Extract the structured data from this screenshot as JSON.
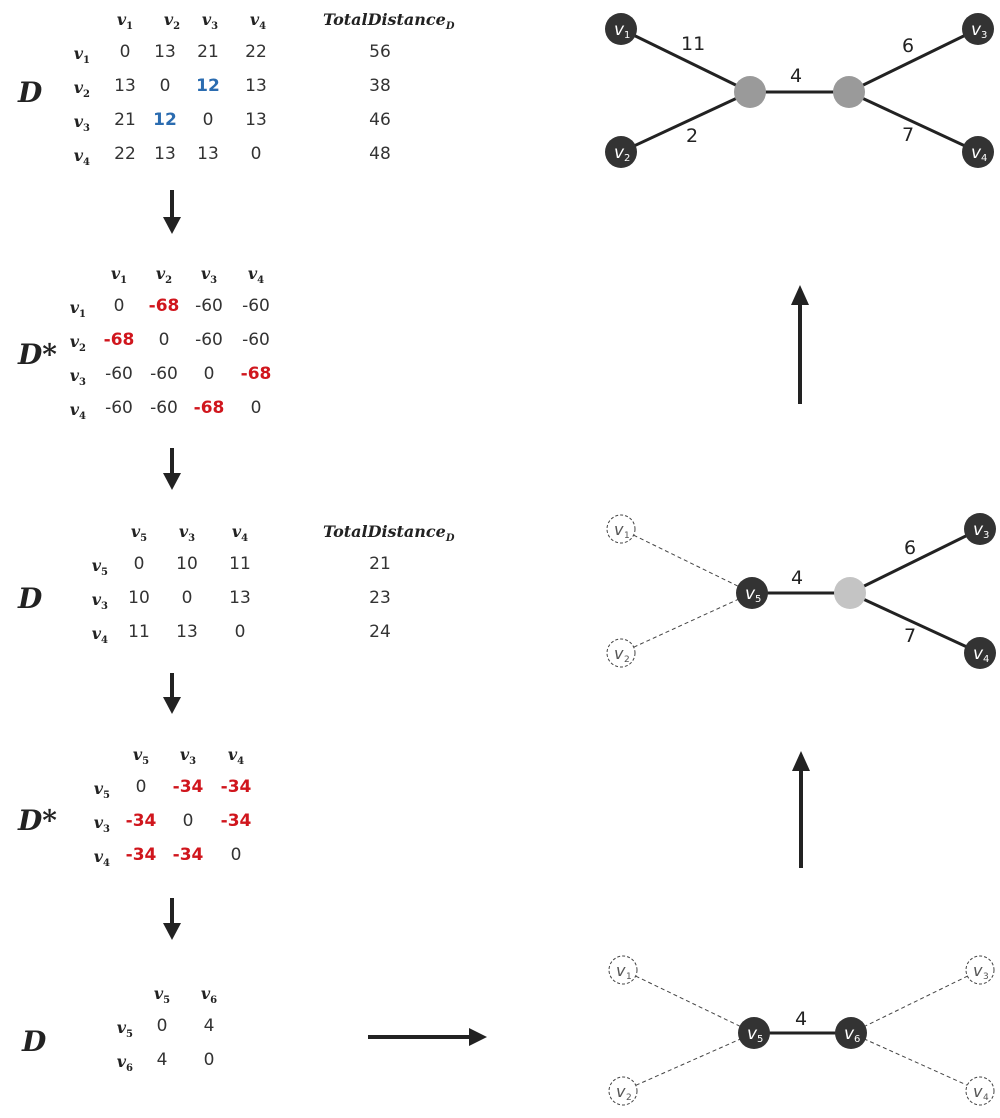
{
  "labels": {
    "D": "D",
    "Dstar": "D*",
    "total_label": "TotalDistance",
    "total_sub": "D"
  },
  "colors": {
    "blue": "#2b6cb0",
    "red": "#d0161d",
    "node_dark": "#333333",
    "node_mid": "#9a9a9a",
    "node_light": "#c4c4c4"
  },
  "m1": {
    "cols": [
      "v1",
      "v2",
      "v3",
      "v4"
    ],
    "rows": [
      {
        "name": "v1",
        "cells": [
          "0",
          "13",
          "21",
          "22"
        ],
        "total": "56"
      },
      {
        "name": "v2",
        "cells": [
          "13",
          "0",
          "12",
          "13"
        ],
        "total": "38"
      },
      {
        "name": "v3",
        "cells": [
          "21",
          "12",
          "0",
          "13"
        ],
        "total": "46"
      },
      {
        "name": "v4",
        "cells": [
          "22",
          "13",
          "13",
          "0"
        ],
        "total": "48"
      }
    ]
  },
  "m2": {
    "cols": [
      "v1",
      "v2",
      "v3",
      "v4"
    ],
    "rows": [
      {
        "name": "v1",
        "cells": [
          "0",
          "-68",
          "-60",
          "-60"
        ]
      },
      {
        "name": "v2",
        "cells": [
          "-68",
          "0",
          "-60",
          "-60"
        ]
      },
      {
        "name": "v3",
        "cells": [
          "-60",
          "-60",
          "0",
          "-68"
        ]
      },
      {
        "name": "v4",
        "cells": [
          "-60",
          "-60",
          "-68",
          "0"
        ]
      }
    ]
  },
  "m3": {
    "cols": [
      "v5",
      "v3",
      "v4"
    ],
    "rows": [
      {
        "name": "v5",
        "cells": [
          "0",
          "10",
          "11"
        ],
        "total": "21"
      },
      {
        "name": "v3",
        "cells": [
          "10",
          "0",
          "13"
        ],
        "total": "23"
      },
      {
        "name": "v4",
        "cells": [
          "11",
          "13",
          "0"
        ],
        "total": "24"
      }
    ]
  },
  "m4": {
    "cols": [
      "v5",
      "v3",
      "v4"
    ],
    "rows": [
      {
        "name": "v5",
        "cells": [
          "0",
          "-34",
          "-34"
        ]
      },
      {
        "name": "v3",
        "cells": [
          "-34",
          "0",
          "-34"
        ]
      },
      {
        "name": "v4",
        "cells": [
          "-34",
          "-34",
          "0"
        ]
      }
    ]
  },
  "m5": {
    "cols": [
      "v5",
      "v6"
    ],
    "rows": [
      {
        "name": "v5",
        "cells": [
          "0",
          "4"
        ]
      },
      {
        "name": "v6",
        "cells": [
          "4",
          "0"
        ]
      }
    ]
  },
  "tree_top": {
    "edges": {
      "v1": "11",
      "v2": "2",
      "mid": "4",
      "v3": "6",
      "v4": "7"
    }
  },
  "tree_mid": {
    "edges": {
      "mid": "4",
      "v3": "6",
      "v4": "7"
    }
  },
  "tree_bot": {
    "edges": {
      "mid": "4"
    }
  }
}
